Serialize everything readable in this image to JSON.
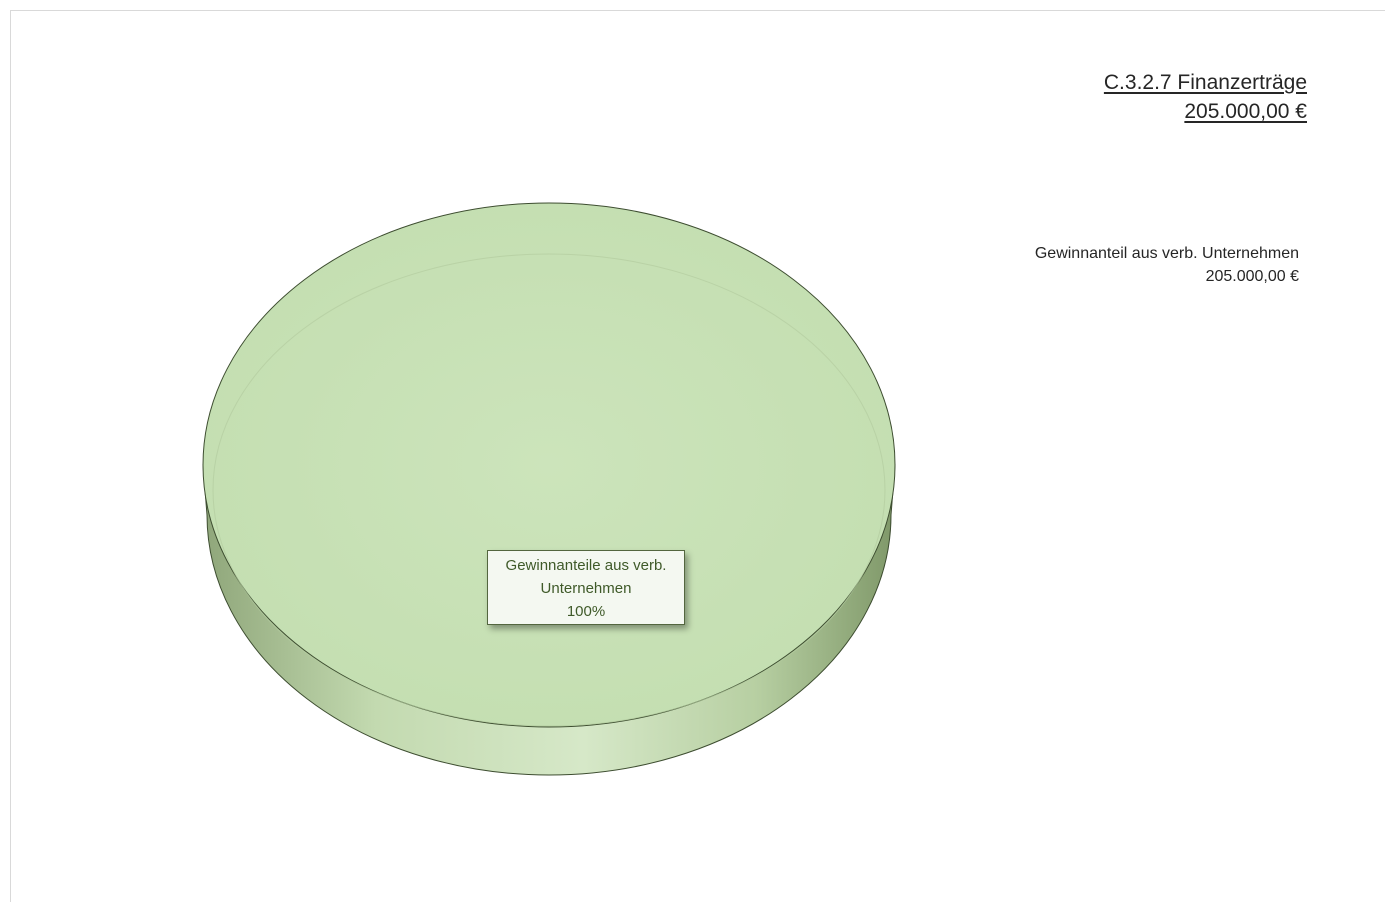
{
  "chart_data": {
    "type": "pie",
    "title": "C.3.2.7 Finanzerträge",
    "subtitle": "205.000,00 €",
    "slices": [
      {
        "legend_name": "Gewinnanteil aus verb. Unternehmen",
        "legend_value": "205.000,00 €",
        "value": 205000,
        "data_label_line1": "Gewinnanteile aus verb.",
        "data_label_line2": "Unternehmen",
        "data_label_percent": "100%",
        "color": "#c6e0b4",
        "edge_color": "#9db787"
      }
    ],
    "style": "3d"
  }
}
